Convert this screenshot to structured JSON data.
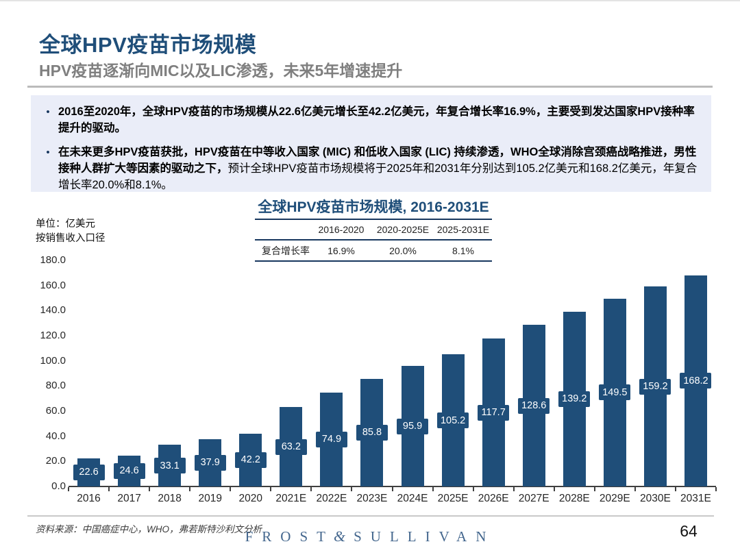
{
  "slide": {
    "title": "全球HPV疫苗市场规模",
    "subtitle": "HPV疫苗逐渐向MIC以及LIC渗透，未来5年增速提升",
    "bullet_marker": "•",
    "bullets": [
      {
        "bold": "2016至2020年，全球HPV疫苗的市场规模从22.6亿美元增长至42.2亿美元，年复合增长率16.9%，主要受到发达国家HPV接种率提升的驱动。",
        "regular": ""
      },
      {
        "bold": "在未来更多HPV疫苗获批，HPV疫苗在中等收入国家 (MIC) 和低收入国家 (LIC) 持续渗透，WHO全球消除宫颈癌战略推进，男性接种人群扩大等因素的驱动之下，",
        "regular": "预计全球HPV疫苗市场规模将于2025年和2031年分别达到105.2亿美元和168.2亿美元，年复合增长率20.0%和8.1%。"
      }
    ],
    "unit_label_line1": "单位：亿美元",
    "unit_label_line2": "按销售收入口径",
    "source": "资料来源：中国癌症中心，WHO，弗若斯特沙利文分析",
    "logo": {
      "left": "FROST",
      "amp": "&",
      "right": "SULLIVAN"
    },
    "page_number": "64"
  },
  "cagr_table": {
    "row_header": "复合增长率",
    "columns": [
      "2016-2020",
      "2020-2025E",
      "2025-2031E"
    ],
    "values": [
      "16.9%",
      "20.0%",
      "8.1%"
    ]
  },
  "chart_data": {
    "type": "bar",
    "title": "全球HPV疫苗市场规模, 2016-2031E",
    "categories": [
      "2016",
      "2017",
      "2018",
      "2019",
      "2020",
      "2021E",
      "2022E",
      "2023E",
      "2024E",
      "2025E",
      "2026E",
      "2027E",
      "2028E",
      "2029E",
      "2030E",
      "2031E"
    ],
    "values": [
      22.6,
      24.6,
      33.1,
      37.9,
      42.2,
      63.2,
      74.9,
      85.8,
      95.9,
      105.2,
      117.7,
      128.6,
      139.2,
      149.5,
      159.2,
      168.2
    ],
    "unit": "亿美元",
    "ylim": [
      0,
      180
    ],
    "ytick_step": 20,
    "ytick_format_decimals": 1,
    "grid": false,
    "legend": "none",
    "data_label_position": "inside-center",
    "bar_color": "#1F4E79",
    "data_label_text_color": "#FFFFFF",
    "axis_color": "#3F3F3F"
  },
  "colors": {
    "accent_navy": "#1F4E79",
    "table_border_navy": "#17375E",
    "subtitle_gray": "#7F7F7F",
    "panel_background": "#EAEDF8",
    "logo_blue": "#44678E"
  }
}
